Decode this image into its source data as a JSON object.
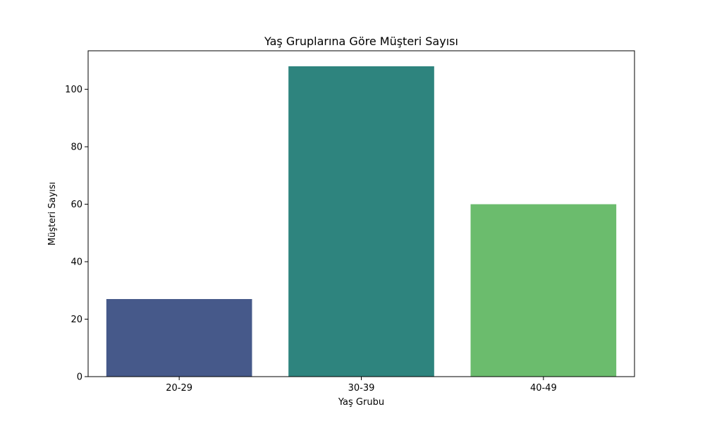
{
  "chart_data": {
    "type": "bar",
    "title": "Yaş Gruplarına Göre Müşteri Sayısı",
    "xlabel": "Yaş Grubu",
    "ylabel": "Müşteri Sayısı",
    "categories": [
      "20-29",
      "30-39",
      "40-49"
    ],
    "values": [
      27,
      108,
      60
    ],
    "colors": [
      "#46598a",
      "#2e847e",
      "#6bbc6d"
    ],
    "ylim": [
      0,
      113.4
    ],
    "yticks": [
      0,
      20,
      40,
      60,
      80,
      100
    ],
    "grid": false,
    "legend": "none"
  }
}
